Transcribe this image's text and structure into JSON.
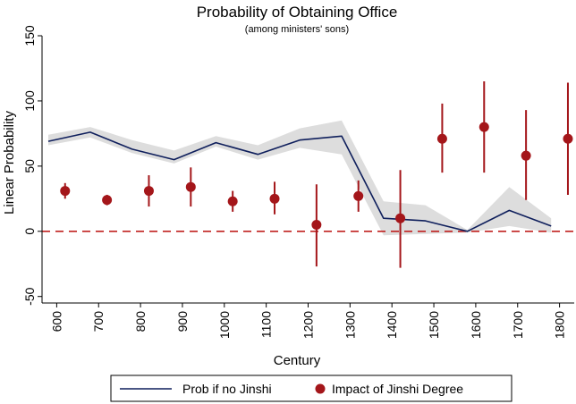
{
  "chart_data": {
    "type": "line",
    "title": "Probability of Obtaining Office",
    "subtitle": "(among ministers' sons)",
    "xlabel": "Century",
    "ylabel": "Linear Probability",
    "ylim": [
      -55,
      150
    ],
    "yticks": [
      -50,
      0,
      50,
      100,
      150
    ],
    "xlim": [
      565,
      1835
    ],
    "xticks": [
      600,
      700,
      800,
      900,
      1000,
      1100,
      1200,
      1300,
      1400,
      1500,
      1600,
      1700,
      1800
    ],
    "reference_line": {
      "y": 0,
      "style": "dashed",
      "color": "#c0211f"
    },
    "series": [
      {
        "name": "Prob if no Jinshi",
        "type": "line",
        "color": "#0f1f5c",
        "band_color": "#dddddd",
        "x": [
          580,
          680,
          780,
          880,
          980,
          1080,
          1180,
          1280,
          1380,
          1480,
          1580,
          1680,
          1780
        ],
        "values": [
          69,
          76,
          63,
          55,
          68,
          59,
          70,
          73,
          10,
          8,
          0,
          16,
          4
        ],
        "ci_low": [
          66,
          72,
          60,
          52,
          65,
          55,
          64,
          59,
          -3,
          -2,
          -1,
          4,
          -1
        ],
        "ci_high": [
          74,
          80,
          70,
          62,
          73,
          66,
          79,
          85,
          23,
          20,
          1,
          34,
          10
        ]
      },
      {
        "name": "Impact of Jinshi Degree",
        "type": "scatter",
        "color": "#a4161a",
        "x": [
          620,
          720,
          820,
          920,
          1020,
          1120,
          1220,
          1320,
          1420,
          1520,
          1620,
          1720,
          1820
        ],
        "values": [
          31,
          24,
          31,
          34,
          23,
          25,
          5,
          27,
          10,
          71,
          80,
          58,
          71
        ],
        "ci_low": [
          25,
          20,
          19,
          19,
          15,
          13,
          -27,
          15,
          -28,
          45,
          45,
          24,
          28
        ],
        "ci_high": [
          37,
          28,
          43,
          49,
          31,
          38,
          36,
          39,
          47,
          98,
          115,
          93,
          114
        ]
      }
    ],
    "legend": {
      "position": "bottom",
      "entries": [
        "Prob if no Jinshi",
        "Impact of Jinshi Degree"
      ]
    }
  }
}
